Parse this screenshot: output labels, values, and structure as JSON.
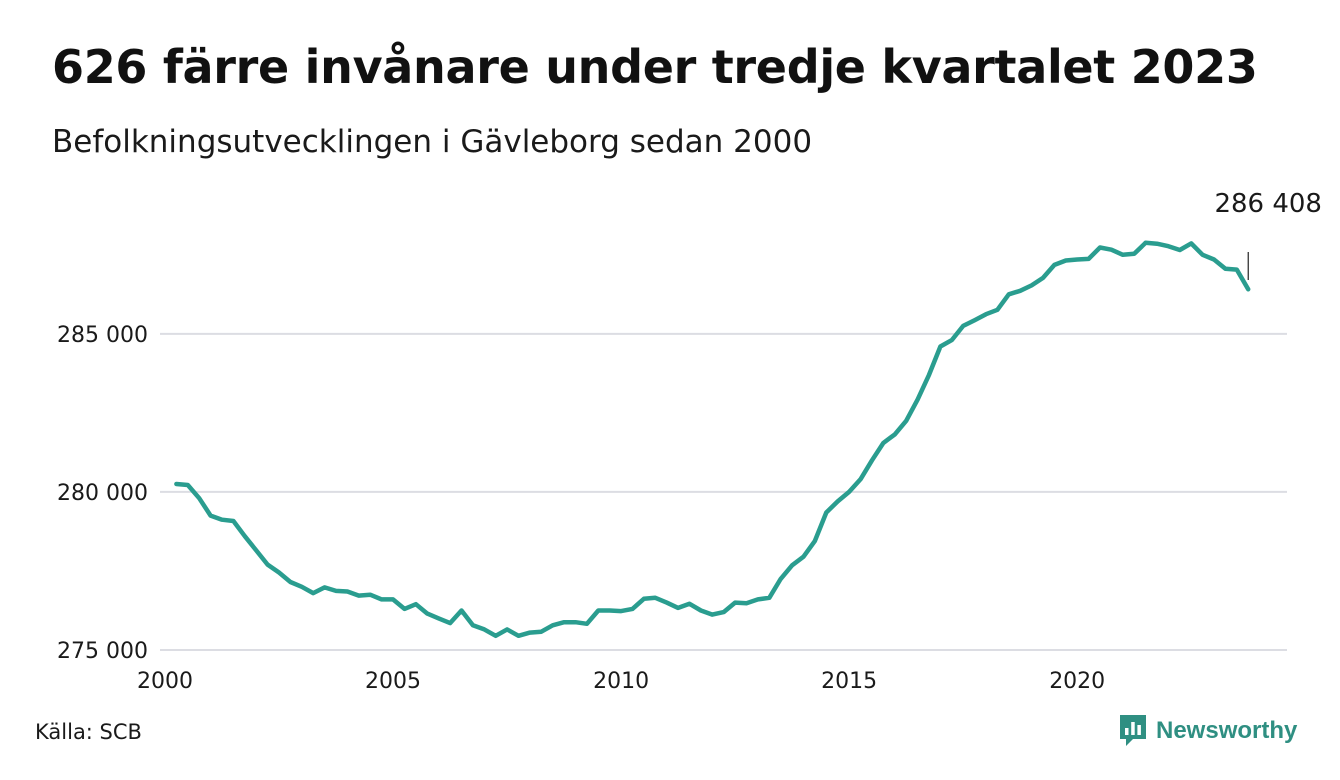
{
  "title": "626 färre invånare under tredje kvartalet 2023",
  "subtitle": "Befolkningsutvecklingen i Gävleborg sedan 2000",
  "source": "Källa: SCB",
  "brand": {
    "name": "Newsworthy",
    "icon": "newsworthy-logo-icon",
    "color": "#2f8f82"
  },
  "chart_data": {
    "type": "line",
    "title": "626 färre invånare under tredje kvartalet 2023",
    "subtitle": "Befolkningsutvecklingen i Gävleborg sedan 2000",
    "xlim": [
      2000,
      2024.6
    ],
    "ylim": [
      275000,
      288600
    ],
    "x_ticks": [
      2000,
      2005,
      2010,
      2015,
      2020
    ],
    "x_tick_labels": [
      "2000",
      "2005",
      "2010",
      "2015",
      "2020"
    ],
    "y_ticks": [
      275000,
      280000,
      285000
    ],
    "y_tick_labels": [
      "275 000",
      "280 000",
      "285 000"
    ],
    "grid": true,
    "line_color": "#2a9d8f",
    "end_label": "286 408",
    "series": [
      {
        "x_start": 2000.25,
        "x_step": 0.25,
        "values": [
          280250,
          280220,
          279800,
          279250,
          279120,
          279080,
          278600,
          278150,
          277700,
          277450,
          277150,
          277000,
          276800,
          276980,
          276870,
          276850,
          276720,
          276750,
          276600,
          276600,
          276300,
          276450,
          276150,
          276000,
          275850,
          276250,
          275780,
          275650,
          275450,
          275650,
          275450,
          275550,
          275580,
          275780,
          275880,
          275880,
          275830,
          276250,
          276250,
          276230,
          276300,
          276620,
          276650,
          276500,
          276330,
          276460,
          276250,
          276120,
          276200,
          276500,
          276480,
          276600,
          276650,
          277250,
          277680,
          277950,
          278450,
          279350,
          279700,
          280000,
          280400,
          281000,
          281550,
          281820,
          282250,
          282920,
          283700,
          284600,
          284800,
          285250,
          285430,
          285620,
          285760,
          286250,
          286360,
          286530,
          286770,
          287180,
          287320,
          287350,
          287370,
          287730,
          287660,
          287500,
          287530,
          287880,
          287850,
          287770,
          287650,
          287860,
          287500,
          287350,
          287060,
          287030,
          286408
        ]
      }
    ]
  }
}
